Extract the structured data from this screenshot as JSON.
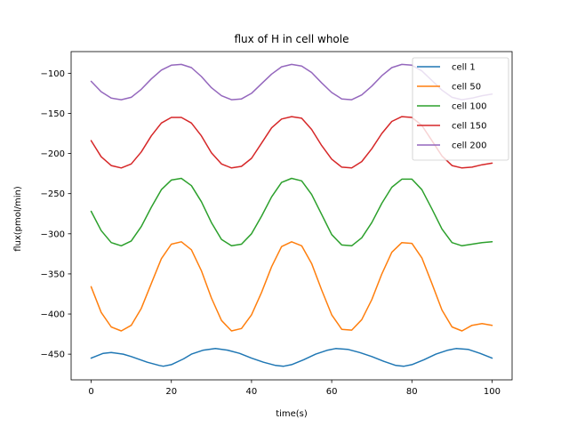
{
  "chart_data": {
    "type": "line",
    "title": "flux of H in cell whole",
    "xlabel": "time(s)",
    "ylabel": "flux(pmol/min)",
    "xlim": [
      -5,
      105
    ],
    "ylim": [
      -482,
      -73
    ],
    "xticks": [
      0,
      20,
      40,
      60,
      80,
      100
    ],
    "yticks": [
      -450,
      -400,
      -350,
      -300,
      -250,
      -200,
      -150,
      -100
    ],
    "grid": false,
    "legend_position": "top-right",
    "series": [
      {
        "name": "cell 1",
        "color": "#1f77b4",
        "x": [
          0,
          3,
          5,
          8,
          10,
          14,
          17,
          18,
          20,
          23,
          25,
          28,
          31,
          34,
          37,
          40,
          43,
          46,
          48,
          50,
          53,
          56,
          59,
          61,
          64,
          67,
          70,
          73,
          76,
          78,
          80,
          83,
          86,
          89,
          91,
          94,
          97,
          100
        ],
        "y": [
          -455,
          -449,
          -448,
          -450,
          -453,
          -460,
          -464,
          -465,
          -463,
          -456,
          -450,
          -445,
          -443,
          -445,
          -449,
          -455,
          -460,
          -464,
          -465,
          -463,
          -457,
          -450,
          -445,
          -443,
          -444,
          -448,
          -453,
          -459,
          -464,
          -465,
          -463,
          -457,
          -450,
          -445,
          -443,
          -444,
          -449,
          -455
        ]
      },
      {
        "name": "cell 50",
        "color": "#ff7f0e",
        "x": [
          0,
          2.5,
          5,
          7.5,
          10,
          12.5,
          15,
          17.5,
          20,
          22.5,
          25,
          27.5,
          30,
          32.5,
          35,
          37.5,
          40,
          42.5,
          45,
          47.5,
          50,
          52.5,
          55,
          57.5,
          60,
          62.5,
          65,
          67.5,
          70,
          72.5,
          75,
          77.5,
          80,
          82.5,
          85,
          87.5,
          90,
          92.5,
          95,
          97.5,
          100
        ],
        "y": [
          -366,
          -398,
          -416,
          -421,
          -414,
          -393,
          -362,
          -331,
          -313,
          -310,
          -320,
          -346,
          -380,
          -408,
          -421,
          -418,
          -401,
          -373,
          -341,
          -316,
          -310,
          -315,
          -337,
          -370,
          -401,
          -419,
          -420,
          -407,
          -382,
          -350,
          -323,
          -311,
          -312,
          -330,
          -362,
          -395,
          -416,
          -421,
          -414,
          -412,
          -414
        ]
      },
      {
        "name": "cell 100",
        "color": "#2ca02c",
        "x": [
          0,
          2.5,
          5,
          7.5,
          10,
          12.5,
          15,
          17.5,
          20,
          22.5,
          25,
          27.5,
          30,
          32.5,
          35,
          37.5,
          40,
          42.5,
          45,
          47.5,
          50,
          52.5,
          55,
          57.5,
          60,
          62.5,
          65,
          67.5,
          70,
          72.5,
          75,
          77.5,
          80,
          82.5,
          85,
          87.5,
          90,
          92.5,
          95,
          97.5,
          100
        ],
        "y": [
          -272,
          -296,
          -311,
          -315,
          -309,
          -291,
          -267,
          -245,
          -233,
          -231,
          -240,
          -260,
          -286,
          -307,
          -315,
          -313,
          -300,
          -278,
          -254,
          -236,
          -231,
          -234,
          -251,
          -276,
          -301,
          -314,
          -315,
          -305,
          -286,
          -262,
          -242,
          -232,
          -232,
          -245,
          -269,
          -294,
          -311,
          -315,
          -313,
          -311,
          -310
        ]
      },
      {
        "name": "cell 150",
        "color": "#d62728",
        "x": [
          0,
          2.5,
          5,
          7.5,
          10,
          12.5,
          15,
          17.5,
          20,
          22.5,
          25,
          27.5,
          30,
          32.5,
          35,
          37.5,
          40,
          42.5,
          45,
          47.5,
          50,
          52.5,
          55,
          57.5,
          60,
          62.5,
          65,
          67.5,
          70,
          72.5,
          75,
          77.5,
          80,
          82.5,
          85,
          87.5,
          90,
          92.5,
          95,
          97.5,
          100
        ],
        "y": [
          -184,
          -204,
          -215,
          -218,
          -213,
          -198,
          -178,
          -162,
          -155,
          -155,
          -162,
          -178,
          -199,
          -213,
          -218,
          -216,
          -206,
          -187,
          -168,
          -157,
          -154,
          -156,
          -170,
          -190,
          -207,
          -217,
          -218,
          -210,
          -194,
          -175,
          -160,
          -154,
          -155,
          -165,
          -184,
          -203,
          -215,
          -218,
          -217,
          -214,
          -212
        ]
      },
      {
        "name": "cell 200",
        "color": "#9467bd",
        "x": [
          0,
          2.5,
          5,
          7.5,
          10,
          12.5,
          15,
          17.5,
          20,
          22.5,
          25,
          27.5,
          30,
          32.5,
          35,
          37.5,
          40,
          42.5,
          45,
          47.5,
          50,
          52.5,
          55,
          57.5,
          60,
          62.5,
          65,
          67.5,
          70,
          72.5,
          75,
          77.5,
          80,
          82.5,
          85,
          87.5,
          90,
          92.5,
          95,
          97.5,
          100
        ],
        "y": [
          -110,
          -123,
          -131,
          -133,
          -130,
          -120,
          -107,
          -96,
          -90,
          -89,
          -93,
          -104,
          -118,
          -128,
          -133,
          -132,
          -125,
          -113,
          -101,
          -92,
          -89,
          -91,
          -99,
          -112,
          -124,
          -132,
          -133,
          -127,
          -116,
          -103,
          -93,
          -89,
          -90,
          -97,
          -109,
          -121,
          -130,
          -133,
          -131,
          -128,
          -126
        ]
      }
    ]
  }
}
